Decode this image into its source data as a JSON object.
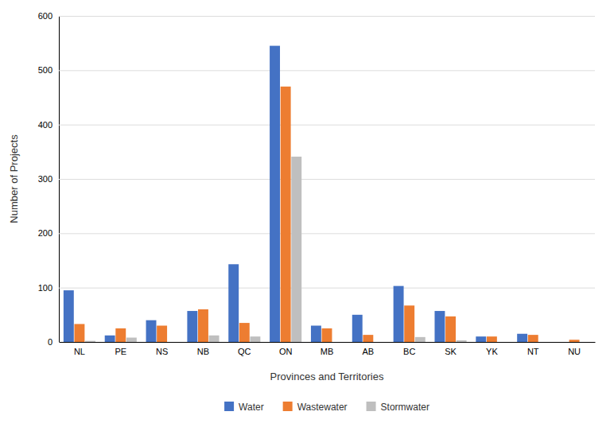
{
  "chart_data": {
    "type": "bar",
    "categories": [
      "NL",
      "PE",
      "NS",
      "NB",
      "QC",
      "ON",
      "MB",
      "AB",
      "BC",
      "SK",
      "YK",
      "NT",
      "NU"
    ],
    "series": [
      {
        "name": "Water",
        "color": "#4472C4",
        "values": [
          95,
          12,
          40,
          57,
          143,
          545,
          30,
          50,
          103,
          57,
          10,
          15,
          0
        ]
      },
      {
        "name": "Wastewater",
        "color": "#ED7D31",
        "values": [
          33,
          25,
          30,
          60,
          35,
          470,
          25,
          13,
          67,
          47,
          10,
          13,
          4
        ]
      },
      {
        "name": "Stormwater",
        "color": "#BFBFBF",
        "values": [
          2,
          8,
          0,
          12,
          10,
          341,
          0,
          0,
          9,
          3,
          0,
          0,
          0
        ]
      }
    ],
    "xlabel": "Provinces and Territories",
    "ylabel": "Number of Projects",
    "ylim": [
      0,
      600
    ],
    "yticks": [
      0,
      100,
      200,
      300,
      400,
      500,
      600
    ],
    "grid": true,
    "legend": "bottom"
  }
}
